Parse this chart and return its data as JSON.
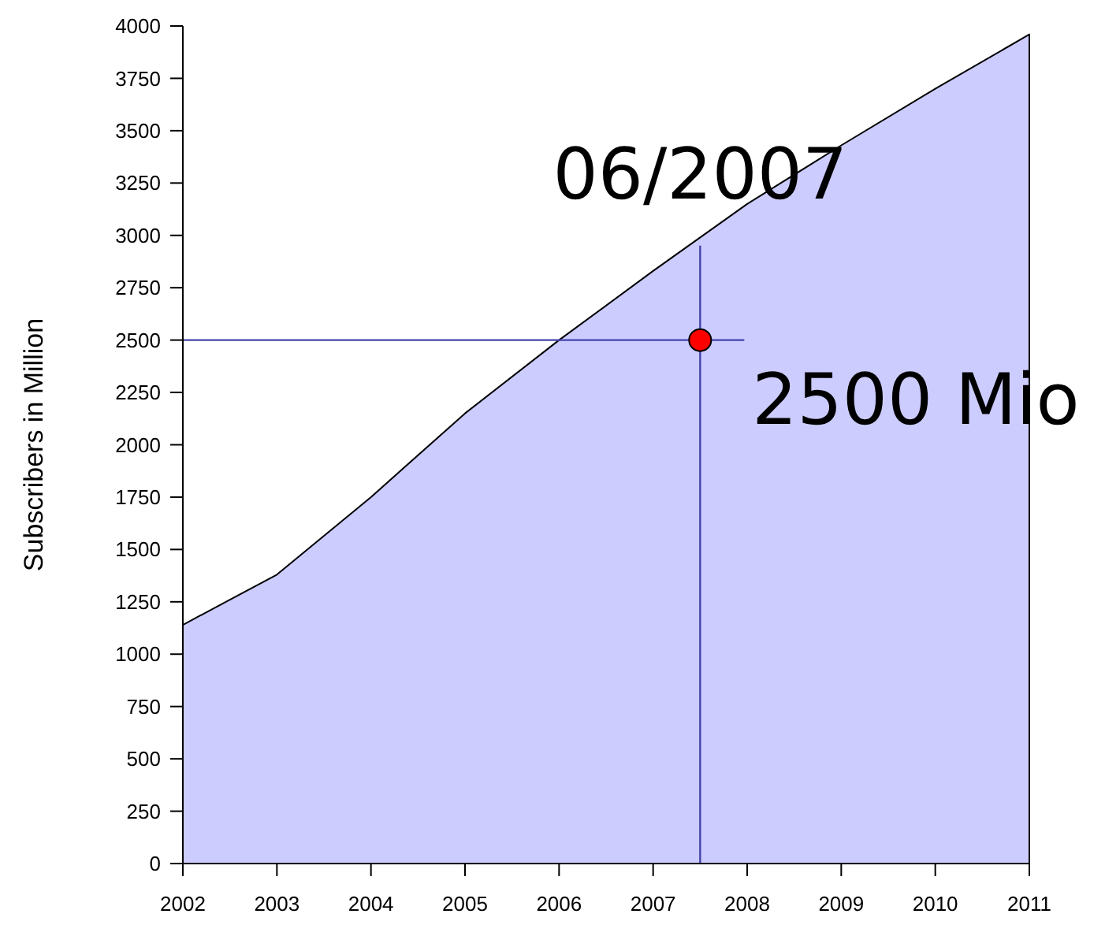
{
  "chart_data": {
    "type": "area",
    "ylabel": "Subscribers in Million",
    "x": [
      2002,
      2003,
      2004,
      2005,
      2006,
      2007,
      2008,
      2009,
      2010,
      2011
    ],
    "series": [
      {
        "color": "#ccccff",
        "values": [
          1140,
          1380,
          1750,
          2150,
          2500,
          2830,
          3150,
          3430,
          3700,
          3960
        ]
      },
      {
        "type": "scatter",
        "color": "#ff0000",
        "marker": "circle",
        "x": [
          2007.5
        ],
        "values": [
          2500
        ]
      }
    ],
    "xlim": [
      2002,
      2011
    ],
    "xticks": [
      2002,
      2003,
      2004,
      2005,
      2006,
      2007,
      2008,
      2009,
      2010,
      2011
    ],
    "ylim": [
      0,
      4000
    ],
    "yticks": [
      0,
      250,
      500,
      750,
      1000,
      1250,
      1500,
      1750,
      2000,
      2250,
      2500,
      2750,
      3000,
      3250,
      3500,
      3750,
      4000
    ],
    "ref_lines": [
      {
        "axis": "x",
        "value": 2007.5,
        "color": "#4444aa"
      },
      {
        "axis": "y",
        "value": 2500,
        "color": "#4444aa"
      }
    ],
    "annotations": [
      {
        "text": "06/2007",
        "x": 2007.5,
        "y": 2500
      },
      {
        "text": "2500 Mio",
        "x": 2007.5,
        "y": 2500
      }
    ],
    "line_style": "solid"
  }
}
